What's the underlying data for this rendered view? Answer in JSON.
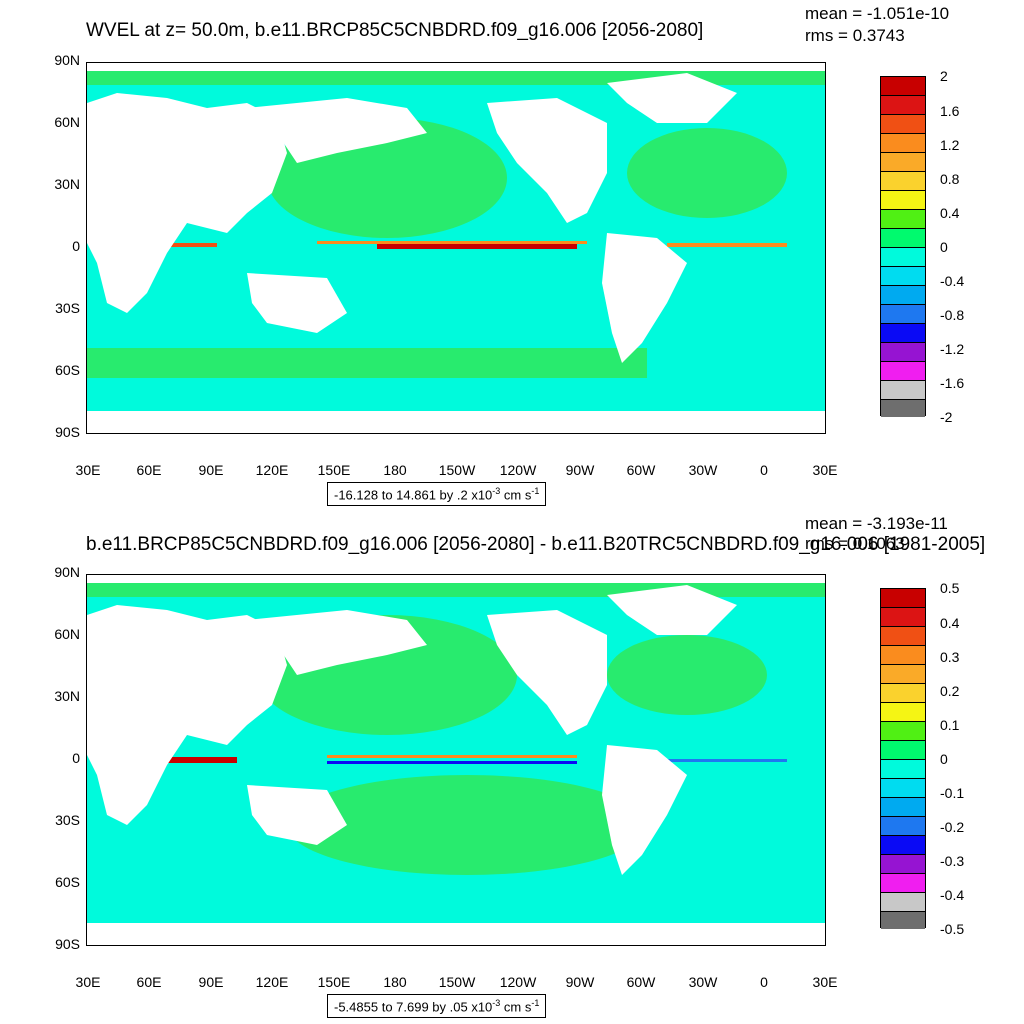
{
  "panels": [
    {
      "title": "WVEL at z=  50.0m, b.e11.BRCP85C5CNBDRD.f09_g16.006 [2056-2080]",
      "mean": "mean = -1.051e-10",
      "rms": "rms = 0.3743",
      "range_prefix": "-16.128 to 14.861 by .2 x10",
      "colorbar_labels": [
        "2",
        "1.6",
        "1.2",
        "0.8",
        "0.4",
        "0",
        "-0.4",
        "-0.8",
        "-1.2",
        "-1.6",
        "-2"
      ]
    },
    {
      "title": "b.e11.BRCP85C5CNBDRD.f09_g16.006 [2056-2080] - b.e11.B20TRC5CNBDRD.f09_g16.006 [1981-2005]",
      "mean": "mean = -3.193e-11",
      "rms": "rms = 0.1063",
      "range_prefix": "-5.4855 to 7.699 by .05 x10",
      "colorbar_labels": [
        "0.5",
        "0.4",
        "0.3",
        "0.2",
        "0.1",
        "0",
        "-0.1",
        "-0.2",
        "-0.3",
        "-0.4",
        "-0.5"
      ]
    }
  ],
  "range_exp": "-3",
  "range_unit": " cm s",
  "range_unit_exp": "-1",
  "y_labels": [
    "90N",
    "60N",
    "30N",
    "0",
    "30S",
    "60S",
    "90S"
  ],
  "x_labels": [
    "30E",
    "60E",
    "90E",
    "120E",
    "150E",
    "180",
    "150W",
    "120W",
    "90W",
    "60W",
    "30W",
    "0",
    "30E"
  ],
  "colors": {
    "levels": [
      "#6e6e6e",
      "#c8c8c8",
      "#f01ef0",
      "#9614d2",
      "#0a0af5",
      "#1e78f0",
      "#00aaf0",
      "#00dcf0",
      "#00fadc",
      "#00fa6e",
      "#50f014",
      "#f5f514",
      "#fad22d",
      "#faaa28",
      "#fa8c1e",
      "#f05014",
      "#dc1414",
      "#c80000"
    ],
    "ocean_base": "#00fadc",
    "ocean_green": "#28eb6e",
    "land": "#ffffff"
  }
}
